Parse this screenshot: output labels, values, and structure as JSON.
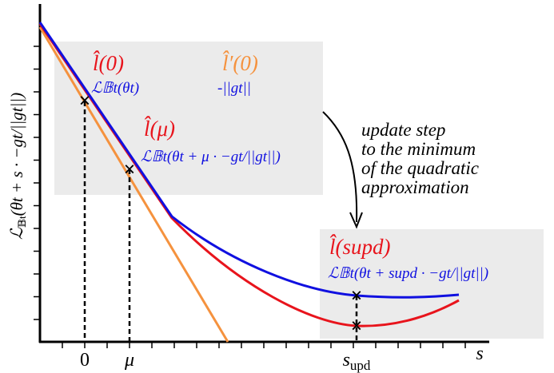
{
  "colors": {
    "approx": "#e8141c",
    "loss": "#1010e0",
    "tangent": "#f5923e",
    "box": "#ebebeb",
    "axis": "#000000"
  },
  "axes": {
    "xlabel": "s",
    "ylabel_main": "ℒ",
    "ylabel_sub": "𝔹t",
    "ylabel_rest": "(θt + s · −gt/||gt||)",
    "xticks": {
      "zero": "0",
      "mu": "μ",
      "supd_main": "s",
      "supd_sub": "upd"
    }
  },
  "labels": {
    "l0": "l̂(0)",
    "L0": "ℒ𝔹t(θt)",
    "lprime0": "l̂′(0)",
    "neg_grad": "-||gt||",
    "lmu": "l̂(μ)",
    "Lmu": "ℒ𝔹t(θt + μ · −gt/||gt||)",
    "lsupd": "l̂(supd)",
    "Lsupd": "ℒ𝔹t(θt + supd · −gt/||gt||)"
  },
  "annotation": [
    "update step",
    "to the minimum",
    "of the quadratic",
    "approximation"
  ],
  "markers": "×"
}
